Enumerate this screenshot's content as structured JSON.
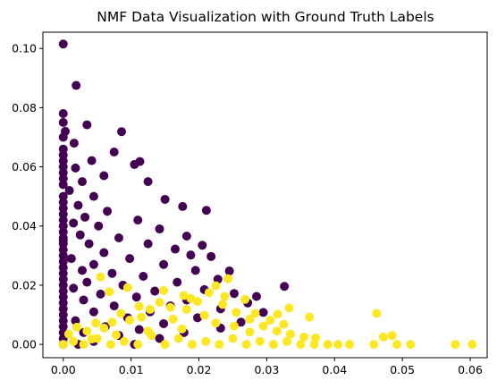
{
  "chart_data": {
    "type": "scatter",
    "title": "NMF Data Visualization with Ground Truth Labels",
    "xlabel": "",
    "ylabel": "",
    "xlim": [
      -0.003,
      0.0625
    ],
    "ylim": [
      -0.0045,
      0.1055
    ],
    "xticks": [
      "0.00",
      "0.01",
      "0.02",
      "0.03",
      "0.04",
      "0.05",
      "0.06"
    ],
    "xtick_values": [
      0.0,
      0.01,
      0.02,
      0.03,
      0.04,
      0.05,
      0.06
    ],
    "yticks": [
      "0.00",
      "0.02",
      "0.04",
      "0.06",
      "0.08",
      "0.10"
    ],
    "ytick_values": [
      0.0,
      0.02,
      0.04,
      0.06,
      0.08,
      0.1
    ],
    "grid": false,
    "legend": "none",
    "colors": {
      "label_0": "#440154",
      "label_1": "#fde725"
    },
    "series": [
      {
        "color": "#440154",
        "points": [
          [
            0.0,
            0.1015
          ],
          [
            0.0019,
            0.0875
          ],
          [
            0.0,
            0.078
          ],
          [
            0.0,
            0.075
          ],
          [
            0.0035,
            0.0742
          ],
          [
            0.0003,
            0.072
          ],
          [
            0.0086,
            0.0719
          ],
          [
            0.0,
            0.07
          ],
          [
            0.0016,
            0.068
          ],
          [
            0.0,
            0.066
          ],
          [
            0.0075,
            0.065
          ],
          [
            0.0,
            0.064
          ],
          [
            0.0,
            0.062
          ],
          [
            0.0113,
            0.0618
          ],
          [
            0.0042,
            0.0621
          ],
          [
            0.0105,
            0.0608
          ],
          [
            0.0,
            0.06
          ],
          [
            0.0018,
            0.0596
          ],
          [
            0.0,
            0.058
          ],
          [
            0.006,
            0.057
          ],
          [
            0.0,
            0.056
          ],
          [
            0.0028,
            0.055
          ],
          [
            0.0125,
            0.055
          ],
          [
            0.0,
            0.054
          ],
          [
            0.0009,
            0.052
          ],
          [
            0.0,
            0.05
          ],
          [
            0.0045,
            0.05
          ],
          [
            0.015,
            0.049
          ],
          [
            0.0,
            0.048
          ],
          [
            0.0022,
            0.047
          ],
          [
            0.0176,
            0.0466
          ],
          [
            0.0,
            0.046
          ],
          [
            0.0211,
            0.0453
          ],
          [
            0.0065,
            0.045
          ],
          [
            0.0,
            0.044
          ],
          [
            0.0032,
            0.043
          ],
          [
            0.0,
            0.042
          ],
          [
            0.011,
            0.042
          ],
          [
            0.0015,
            0.041
          ],
          [
            0.0,
            0.04
          ],
          [
            0.0052,
            0.04
          ],
          [
            0.0142,
            0.039
          ],
          [
            0.0,
            0.038
          ],
          [
            0.0025,
            0.037
          ],
          [
            0.0182,
            0.0366
          ],
          [
            0.0,
            0.036
          ],
          [
            0.0082,
            0.036
          ],
          [
            0.0,
            0.034
          ],
          [
            0.0038,
            0.034
          ],
          [
            0.0125,
            0.034
          ],
          [
            0.0,
            0.032
          ],
          [
            0.0165,
            0.0322
          ],
          [
            0.006,
            0.031
          ],
          [
            0.0,
            0.03
          ],
          [
            0.0218,
            0.0297
          ],
          [
            0.0012,
            0.029
          ],
          [
            0.0098,
            0.029
          ],
          [
            0.0,
            0.028
          ],
          [
            0.0045,
            0.027
          ],
          [
            0.0148,
            0.027
          ],
          [
            0.0,
            0.026
          ],
          [
            0.0195,
            0.025
          ],
          [
            0.0028,
            0.025
          ],
          [
            0.0,
            0.024
          ],
          [
            0.0072,
            0.024
          ],
          [
            0.0118,
            0.023
          ],
          [
            0.0,
            0.022
          ],
          [
            0.0228,
            0.022
          ],
          [
            0.0035,
            0.021
          ],
          [
            0.0168,
            0.021
          ],
          [
            0.0,
            0.02
          ],
          [
            0.0088,
            0.02
          ],
          [
            0.0326,
            0.0196
          ],
          [
            0.0285,
            0.0162
          ],
          [
            0.0208,
            0.0185
          ],
          [
            0.0015,
            0.019
          ],
          [
            0.0135,
            0.018
          ],
          [
            0.0,
            0.018
          ],
          [
            0.0055,
            0.017
          ],
          [
            0.0252,
            0.0172
          ],
          [
            0.0108,
            0.016
          ],
          [
            0.0,
            0.016
          ],
          [
            0.0182,
            0.015
          ],
          [
            0.003,
            0.015
          ],
          [
            0.0272,
            0.014
          ],
          [
            0.0,
            0.014
          ],
          [
            0.0075,
            0.013
          ],
          [
            0.0158,
            0.013
          ],
          [
            0.0232,
            0.012
          ],
          [
            0.0,
            0.012
          ],
          [
            0.0045,
            0.011
          ],
          [
            0.0128,
            0.011
          ],
          [
            0.0295,
            0.0108
          ],
          [
            0.0,
            0.01
          ],
          [
            0.0095,
            0.009
          ],
          [
            0.0198,
            0.009
          ],
          [
            0.0018,
            0.008
          ],
          [
            0.0,
            0.008
          ],
          [
            0.0262,
            0.0075
          ],
          [
            0.0148,
            0.007
          ],
          [
            0.0062,
            0.006
          ],
          [
            0.0,
            0.006
          ],
          [
            0.0232,
            0.0055
          ],
          [
            0.0112,
            0.005
          ],
          [
            0.003,
            0.004
          ],
          [
            0.0,
            0.004
          ],
          [
            0.0178,
            0.004
          ],
          [
            0.0082,
            0.003
          ],
          [
            0.0,
            0.002
          ],
          [
            0.0142,
            0.002
          ],
          [
            0.0045,
            0.001
          ],
          [
            0.0,
            0.0
          ],
          [
            0.0022,
            0.0
          ],
          [
            0.0105,
            0.0
          ],
          [
            0.0,
            0.035
          ],
          [
            0.0205,
            0.0335
          ],
          [
            0.0245,
            0.0248
          ],
          [
            0.0188,
            0.0302
          ]
        ]
      },
      {
        "color": "#fde725",
        "points": [
          [
            0.0,
            0.0
          ],
          [
            0.0015,
            0.001
          ],
          [
            0.003,
            0.0
          ],
          [
            0.005,
            0.002
          ],
          [
            0.007,
            0.0
          ],
          [
            0.009,
            0.001
          ],
          [
            0.011,
            0.0
          ],
          [
            0.013,
            0.003
          ],
          [
            0.015,
            0.0
          ],
          [
            0.017,
            0.002
          ],
          [
            0.019,
            0.0
          ],
          [
            0.021,
            0.001
          ],
          [
            0.023,
            0.0
          ],
          [
            0.025,
            0.002
          ],
          [
            0.027,
            0.0
          ],
          [
            0.029,
            0.001
          ],
          [
            0.031,
            0.0
          ],
          [
            0.033,
            0.001
          ],
          [
            0.035,
            0.0
          ],
          [
            0.037,
            0.0
          ],
          [
            0.039,
            0.0
          ],
          [
            0.0405,
            0.0
          ],
          [
            0.0422,
            0.0
          ],
          [
            0.0458,
            0.0
          ],
          [
            0.0492,
            0.0
          ],
          [
            0.0512,
            0.0
          ],
          [
            0.0578,
            0.0
          ],
          [
            0.0603,
            0.0
          ],
          [
            0.0485,
            0.003
          ],
          [
            0.0472,
            0.0025
          ],
          [
            0.0462,
            0.0105
          ],
          [
            0.0372,
            0.0022
          ],
          [
            0.0363,
            0.0092
          ],
          [
            0.0333,
            0.0123
          ],
          [
            0.0316,
            0.0102
          ],
          [
            0.0305,
            0.0082
          ],
          [
            0.0283,
            0.0105
          ],
          [
            0.0268,
            0.0152
          ],
          [
            0.0243,
            0.0222
          ],
          [
            0.0225,
            0.0198
          ],
          [
            0.0215,
            0.0175
          ],
          [
            0.0198,
            0.0145
          ],
          [
            0.0178,
            0.0165
          ],
          [
            0.0158,
            0.0125
          ],
          [
            0.0142,
            0.0142
          ],
          [
            0.0128,
            0.0118
          ],
          [
            0.0115,
            0.0092
          ],
          [
            0.0098,
            0.0082
          ],
          [
            0.0085,
            0.0105
          ],
          [
            0.0072,
            0.0075
          ],
          [
            0.006,
            0.0055
          ],
          [
            0.0048,
            0.0072
          ],
          [
            0.0035,
            0.0045
          ],
          [
            0.002,
            0.0058
          ],
          [
            0.0008,
            0.0035
          ],
          [
            0.0055,
            0.0228
          ],
          [
            0.0068,
            0.0178
          ],
          [
            0.0095,
            0.0192
          ],
          [
            0.0148,
            0.0182
          ],
          [
            0.0188,
            0.0155
          ],
          [
            0.0235,
            0.0135
          ],
          [
            0.0255,
            0.0108
          ],
          [
            0.0275,
            0.0085
          ],
          [
            0.0295,
            0.0062
          ],
          [
            0.0315,
            0.0045
          ],
          [
            0.0335,
            0.0035
          ],
          [
            0.0355,
            0.0025
          ],
          [
            0.0325,
            0.0068
          ],
          [
            0.0275,
            0.0042
          ],
          [
            0.0225,
            0.0072
          ],
          [
            0.0175,
            0.0052
          ],
          [
            0.0125,
            0.0045
          ],
          [
            0.0078,
            0.0032
          ],
          [
            0.0042,
            0.0018
          ],
          [
            0.0162,
            0.0085
          ],
          [
            0.0208,
            0.0098
          ],
          [
            0.0252,
            0.0062
          ],
          [
            0.0112,
            0.0128
          ],
          [
            0.0182,
            0.0118
          ],
          [
            0.0238,
            0.0162
          ]
        ]
      }
    ]
  }
}
